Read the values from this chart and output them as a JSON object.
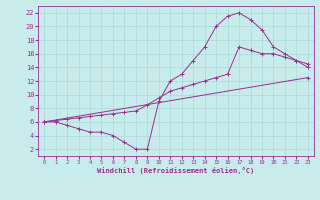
{
  "xlabel": "Windchill (Refroidissement éolien,°C)",
  "background_color": "#c8ecec",
  "line_color": "#9b2d8e",
  "grid_color": "#a8d8d8",
  "xlim": [
    -0.5,
    23.5
  ],
  "ylim": [
    1,
    23
  ],
  "yticks": [
    2,
    4,
    6,
    8,
    10,
    12,
    14,
    16,
    18,
    20,
    22
  ],
  "xticks": [
    0,
    1,
    2,
    3,
    4,
    5,
    6,
    7,
    8,
    9,
    10,
    11,
    12,
    13,
    14,
    15,
    16,
    17,
    18,
    19,
    20,
    21,
    22,
    23
  ],
  "line1_x": [
    0,
    1,
    2,
    3,
    4,
    5,
    6,
    7,
    8,
    9,
    10,
    11,
    12,
    13,
    14,
    15,
    16,
    17,
    18,
    19,
    20,
    21,
    22,
    23
  ],
  "line1_y": [
    6,
    6,
    5.5,
    5,
    4.5,
    4.5,
    4,
    3,
    2,
    2,
    9,
    12,
    13,
    15,
    17,
    20,
    21.5,
    22,
    21,
    19.5,
    17,
    16,
    15,
    14
  ],
  "line2_x": [
    0,
    1,
    2,
    3,
    4,
    5,
    6,
    7,
    8,
    9,
    10,
    11,
    12,
    13,
    14,
    15,
    16,
    17,
    18,
    19,
    20,
    21,
    22,
    23
  ],
  "line2_y": [
    6,
    6.2,
    6.4,
    6.6,
    6.8,
    7.0,
    7.2,
    7.4,
    7.6,
    8.5,
    9.5,
    10.5,
    11.0,
    11.5,
    12.0,
    12.5,
    13.0,
    17.0,
    16.5,
    16.0,
    16.0,
    15.5,
    15.0,
    14.5
  ],
  "line3_x": [
    0,
    23
  ],
  "line3_y": [
    6,
    12.5
  ],
  "marker": "+"
}
